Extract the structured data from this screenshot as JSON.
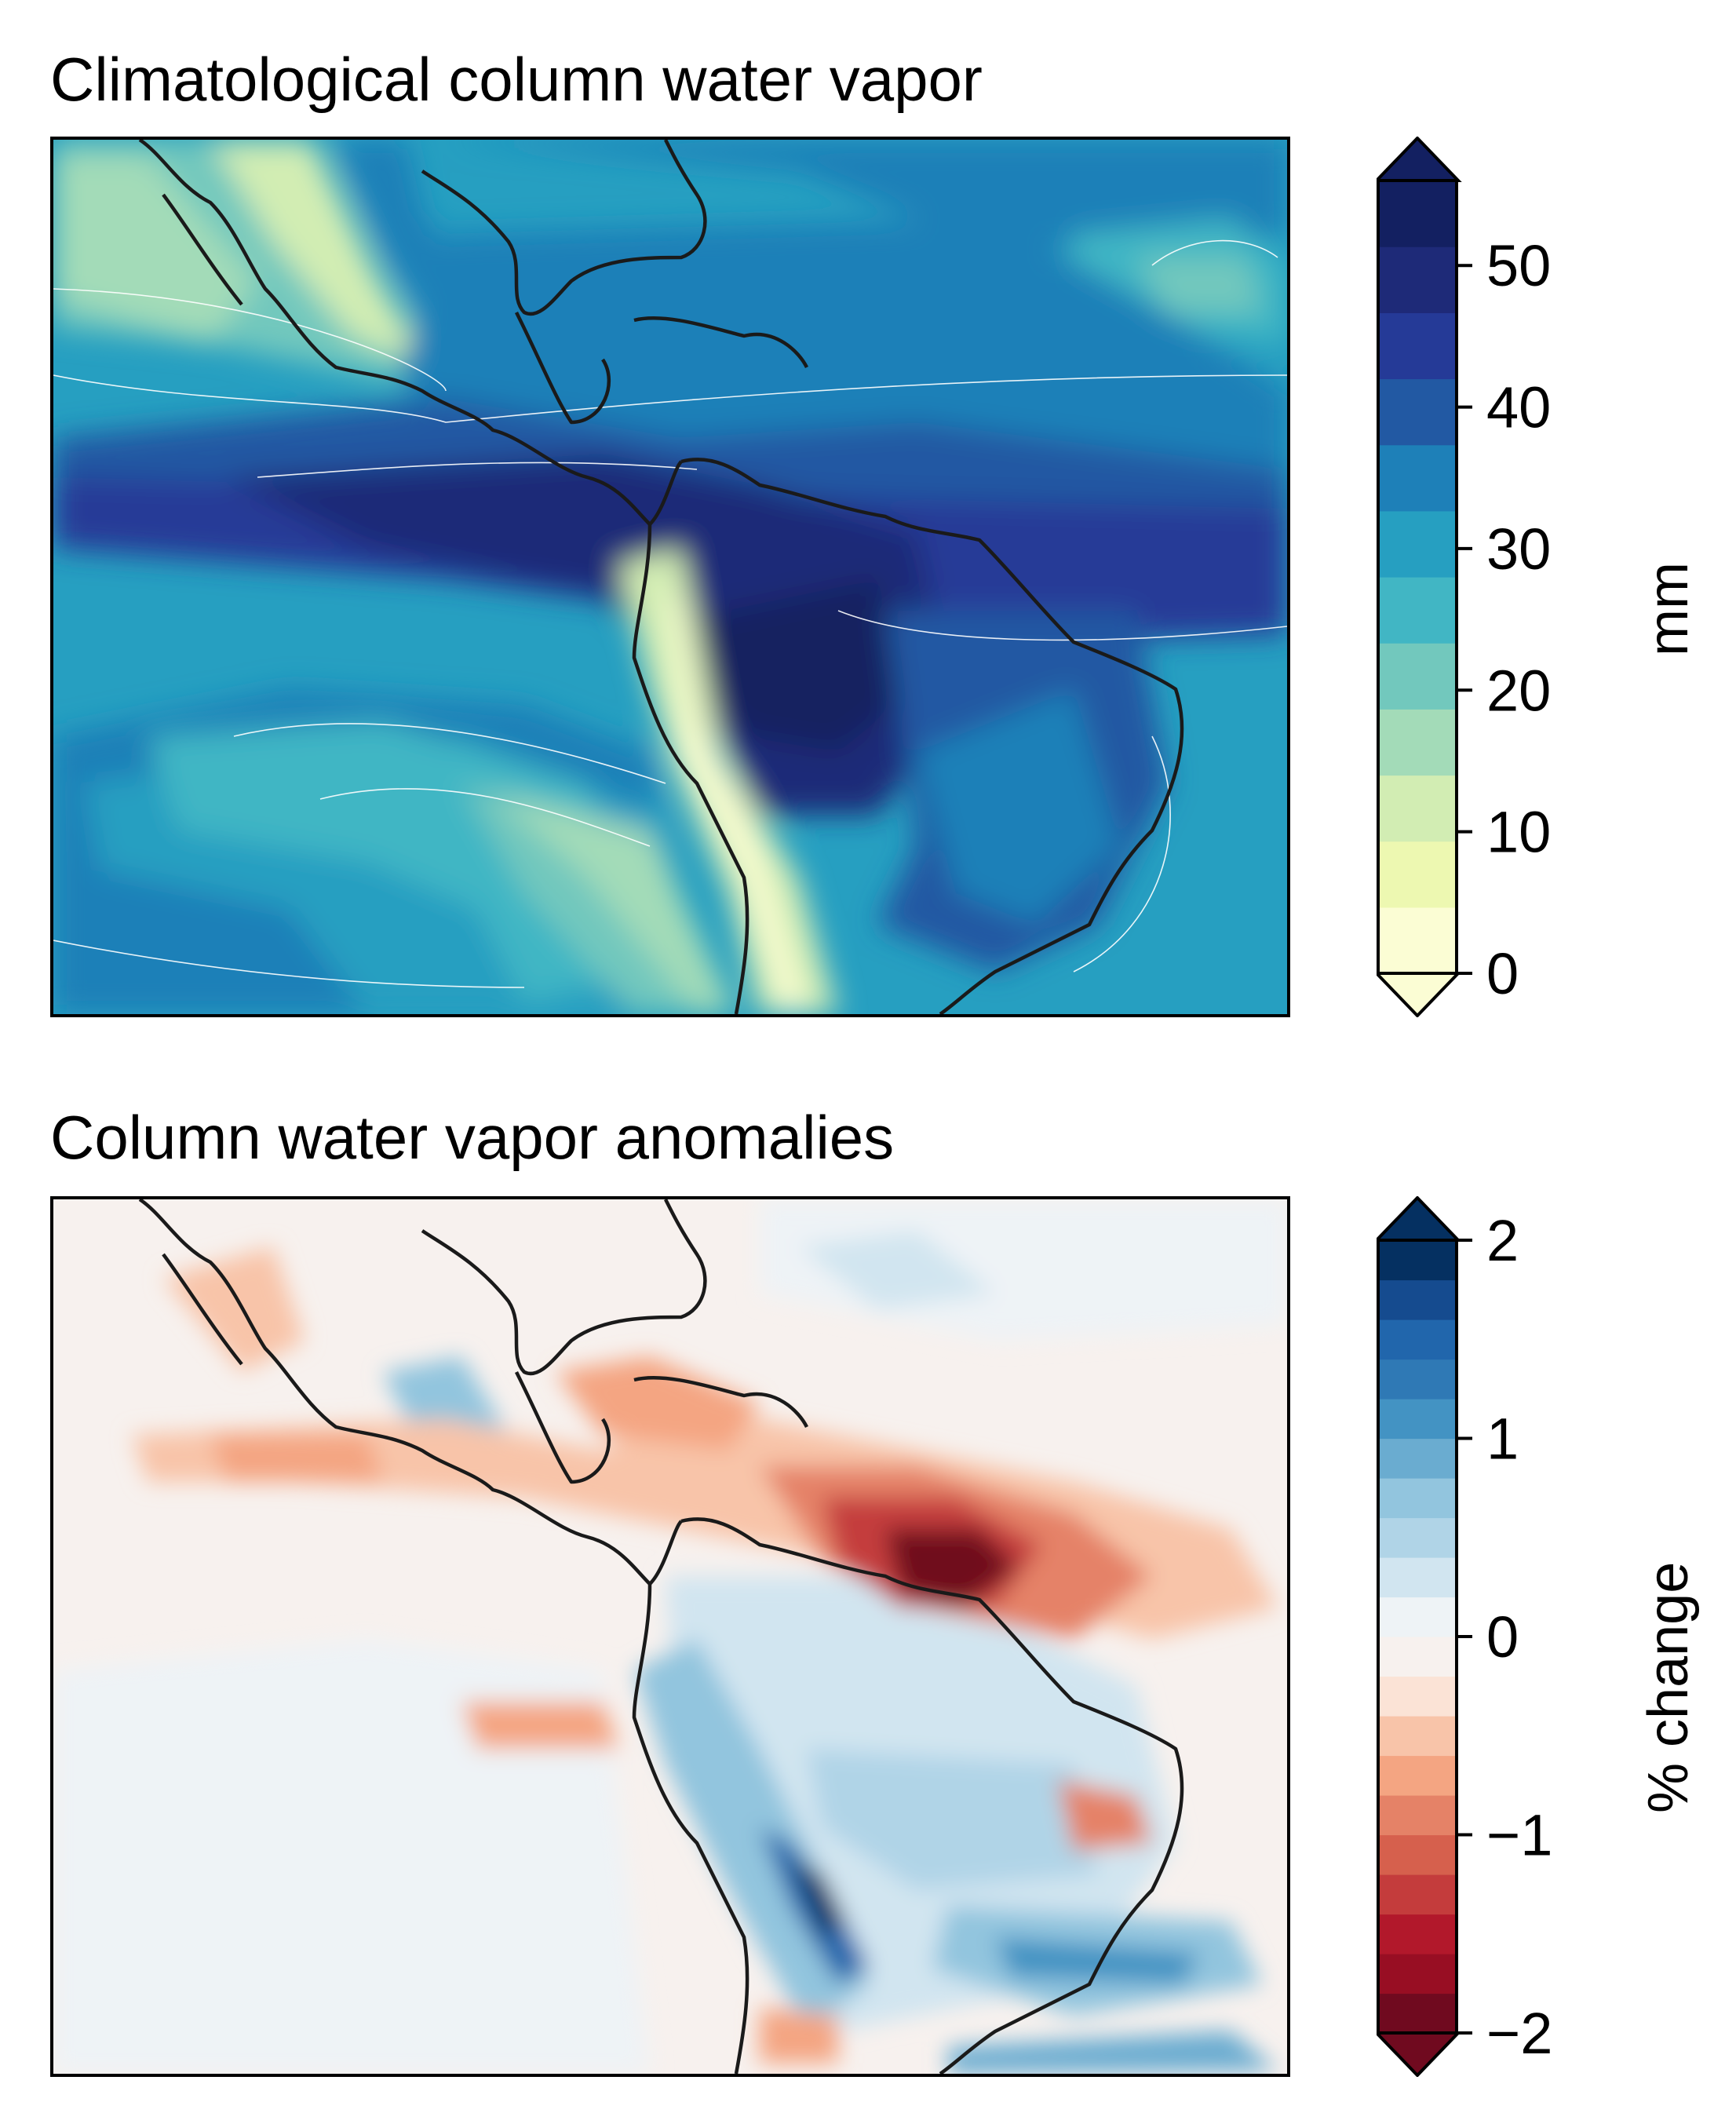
{
  "panels": [
    {
      "title": "Climatological column water vapor",
      "colorbar": {
        "label": "mm",
        "ticks": [
          "0",
          "10",
          "20",
          "30",
          "40",
          "50"
        ],
        "tick_values": [
          0,
          10,
          20,
          30,
          40,
          50
        ],
        "range": [
          0,
          56
        ],
        "extend": "both",
        "colormap": [
          "#fbfdd4",
          "#edf8b1",
          "#d2edb3",
          "#a3dbb8",
          "#72c8bd",
          "#41b6c4",
          "#269fc1",
          "#1e80b8",
          "#2259a3",
          "#253a97",
          "#1e2a78",
          "#132061"
        ]
      }
    },
    {
      "title": "Column water vapor anomalies",
      "colorbar": {
        "label": "% change",
        "ticks": [
          "2",
          "1",
          "0",
          "−1",
          "−2"
        ],
        "tick_values": [
          2,
          1,
          0,
          -1,
          -2
        ],
        "range": [
          -2,
          2
        ],
        "extend": "both",
        "colormap": [
          "#700a1f",
          "#980e23",
          "#b2182b",
          "#c43c3c",
          "#d6604d",
          "#e58267",
          "#f4a582",
          "#f8c4a9",
          "#fbe3d6",
          "#f7f1ee",
          "#eef3f6",
          "#d1e5f0",
          "#b0d4e7",
          "#92c5de",
          "#6aacd0",
          "#4393c3",
          "#2f79b5",
          "#2166ac",
          "#154b8f",
          "#053061"
        ]
      }
    }
  ]
}
